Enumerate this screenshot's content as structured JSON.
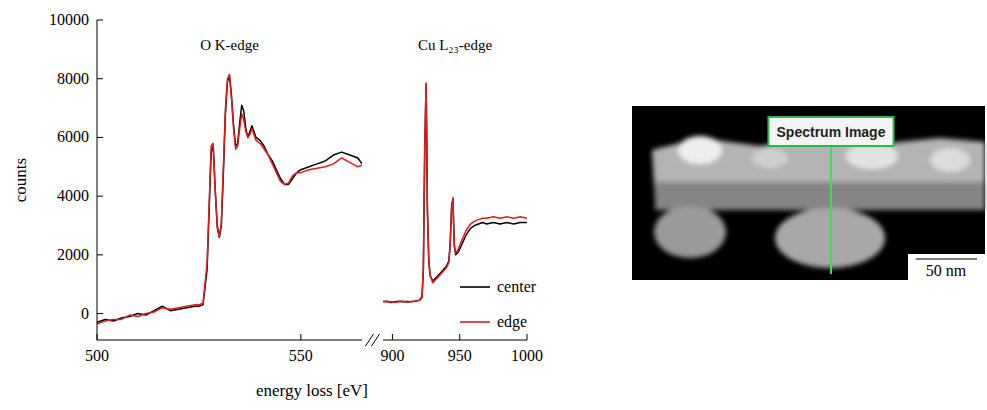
{
  "chart_data": [
    {
      "type": "line",
      "title": "O K-edge",
      "xlabel": "energy loss [eV]",
      "ylabel": "counts",
      "x": [
        500,
        502,
        504,
        506,
        508,
        510,
        512,
        514,
        516,
        518,
        520,
        522,
        524,
        525,
        526,
        527,
        527.5,
        528,
        528.5,
        529,
        529.5,
        530,
        530.5,
        531,
        531.5,
        532,
        532.5,
        533,
        533.5,
        534,
        534.5,
        535,
        535.5,
        536,
        536.5,
        537,
        537.5,
        538,
        538.5,
        539,
        540,
        541,
        542,
        543,
        544,
        545,
        546,
        547,
        548,
        549,
        550,
        552,
        554,
        556,
        558,
        560,
        562,
        564,
        565
      ],
      "xlim": [
        500,
        565
      ],
      "xticks": [
        500,
        550
      ],
      "ylim": [
        -900,
        10000
      ],
      "yticks": [
        0,
        2000,
        4000,
        6000,
        8000,
        10000
      ],
      "series": [
        {
          "color": "#000000",
          "values": [
            -300,
            -200,
            -250,
            -150,
            -100,
            0,
            -50,
            100,
            250,
            100,
            150,
            200,
            250,
            250,
            300,
            1500,
            3500,
            5500,
            5700,
            4200,
            3000,
            2600,
            3000,
            4800,
            6800,
            7900,
            8100,
            7400,
            6400,
            5700,
            5800,
            6500,
            7100,
            6900,
            6300,
            6000,
            6200,
            6400,
            6200,
            6000,
            5900,
            5700,
            5400,
            5200,
            4900,
            4600,
            4400,
            4400,
            4600,
            4800,
            4900,
            5000,
            5100,
            5200,
            5400,
            5500,
            5400,
            5300,
            5100
          ]
        },
        {
          "color": "#e31a1c",
          "values": [
            -350,
            -250,
            -200,
            -200,
            -50,
            -100,
            0,
            50,
            200,
            150,
            200,
            250,
            300,
            300,
            350,
            1700,
            3700,
            5700,
            5800,
            4200,
            2900,
            2600,
            3100,
            5000,
            7000,
            8000,
            8150,
            7300,
            6300,
            5600,
            5700,
            6300,
            6800,
            6600,
            6200,
            6000,
            6100,
            6300,
            6100,
            5900,
            5800,
            5600,
            5400,
            5100,
            4800,
            4500,
            4400,
            4450,
            4700,
            4800,
            4800,
            4900,
            4950,
            5000,
            5100,
            5300,
            5150,
            5000,
            5050
          ]
        }
      ]
    },
    {
      "type": "line",
      "title": "Cu L₂₃-edge",
      "x": [
        893,
        896,
        899,
        902,
        905,
        908,
        911,
        914,
        917,
        920,
        922,
        923,
        924,
        925,
        925.5,
        926,
        927,
        928,
        930,
        932,
        934,
        936,
        938,
        940,
        942,
        943,
        944,
        945,
        945.5,
        946,
        947,
        949,
        952,
        955,
        958,
        961,
        964,
        967,
        970,
        975,
        980,
        985,
        990,
        995,
        1000
      ],
      "xlim": [
        893,
        1000
      ],
      "xticks": [
        900,
        950,
        1000
      ],
      "ylim": [
        -900,
        10000
      ],
      "tick_labels": "x",
      "legend": "lower right",
      "series": [
        {
          "name": "center",
          "color": "#000000",
          "values": [
            400,
            420,
            380,
            400,
            420,
            400,
            410,
            400,
            420,
            450,
            550,
            1500,
            5500,
            7800,
            6000,
            3500,
            1800,
            1300,
            1100,
            1200,
            1300,
            1400,
            1500,
            1600,
            1800,
            2500,
            3700,
            3900,
            3000,
            2300,
            2000,
            2100,
            2400,
            2700,
            2900,
            3000,
            3050,
            3100,
            3050,
            3100,
            3050,
            3100,
            3050,
            3100,
            3100
          ]
        },
        {
          "name": "edge",
          "color": "#e31a1c",
          "values": [
            420,
            400,
            400,
            380,
            410,
            420,
            390,
            410,
            430,
            460,
            580,
            1600,
            5600,
            7850,
            6100,
            3600,
            1900,
            1300,
            1050,
            1150,
            1250,
            1350,
            1450,
            1550,
            1750,
            2400,
            3600,
            3950,
            3050,
            2350,
            2050,
            2200,
            2550,
            2850,
            3050,
            3150,
            3200,
            3250,
            3250,
            3300,
            3250,
            3300,
            3250,
            3300,
            3250
          ]
        }
      ]
    }
  ],
  "image": {
    "label": "Spectrum Image",
    "scale_bar": "50 nm"
  }
}
